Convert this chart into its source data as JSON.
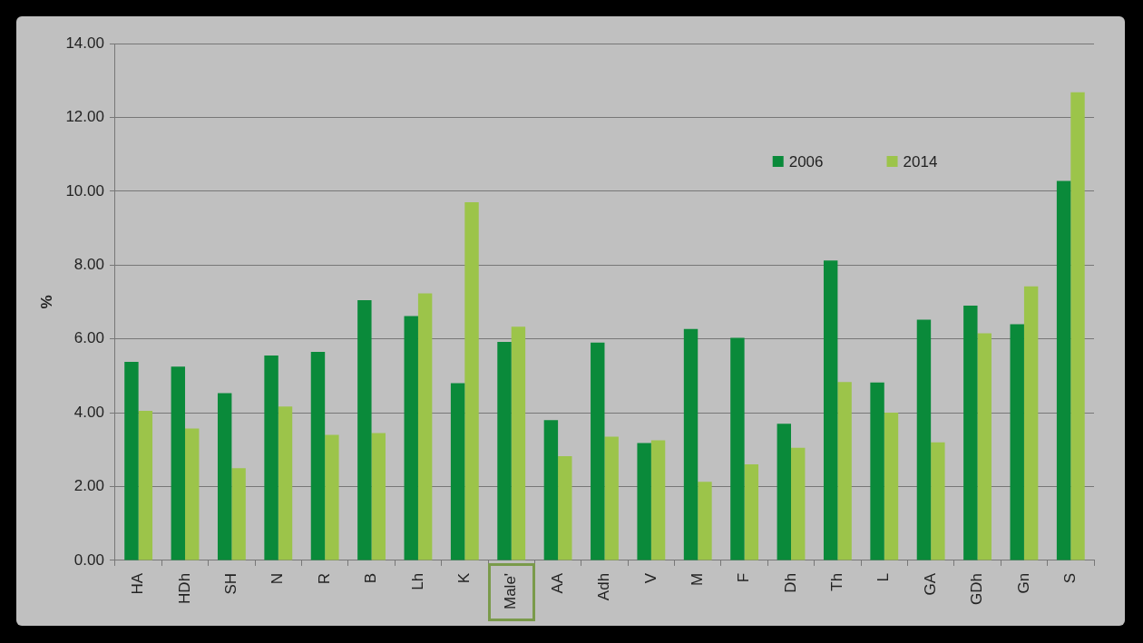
{
  "chart_data": {
    "type": "bar",
    "ylabel": "%",
    "categories": [
      "HA",
      "HDh",
      "SH",
      "N",
      "R",
      "B",
      "Lh",
      "K",
      "Male'",
      "AA",
      "Adh",
      "V",
      "M",
      "F",
      "Dh",
      "Th",
      "L",
      "GA",
      "GDh",
      "Gn",
      "S"
    ],
    "series": [
      {
        "name": "2006",
        "color": "#0a8a3a",
        "values": [
          5.38,
          5.25,
          4.53,
          5.55,
          5.65,
          7.05,
          6.62,
          4.8,
          5.92,
          3.8,
          5.9,
          3.18,
          6.27,
          6.03,
          3.7,
          8.12,
          4.82,
          6.52,
          6.9,
          6.4,
          10.28
        ]
      },
      {
        "name": "2014",
        "color": "#9cc44a",
        "values": [
          4.05,
          3.57,
          2.5,
          4.17,
          3.4,
          3.45,
          7.23,
          9.7,
          6.33,
          2.82,
          3.35,
          3.25,
          2.13,
          2.6,
          3.05,
          4.83,
          4.0,
          3.2,
          6.15,
          7.42,
          12.68
        ]
      }
    ],
    "ylim": [
      0,
      14
    ],
    "yticks": [
      {
        "value": 0,
        "label": "0.00"
      },
      {
        "value": 2,
        "label": "2.00"
      },
      {
        "value": 4,
        "label": "4.00"
      },
      {
        "value": 6,
        "label": "6.00"
      },
      {
        "value": 8,
        "label": "8.00"
      },
      {
        "value": 10,
        "label": "10.00"
      },
      {
        "value": 12,
        "label": "12.00"
      },
      {
        "value": 14,
        "label": "14.00"
      }
    ],
    "grid": "y",
    "legend": "top right"
  }
}
